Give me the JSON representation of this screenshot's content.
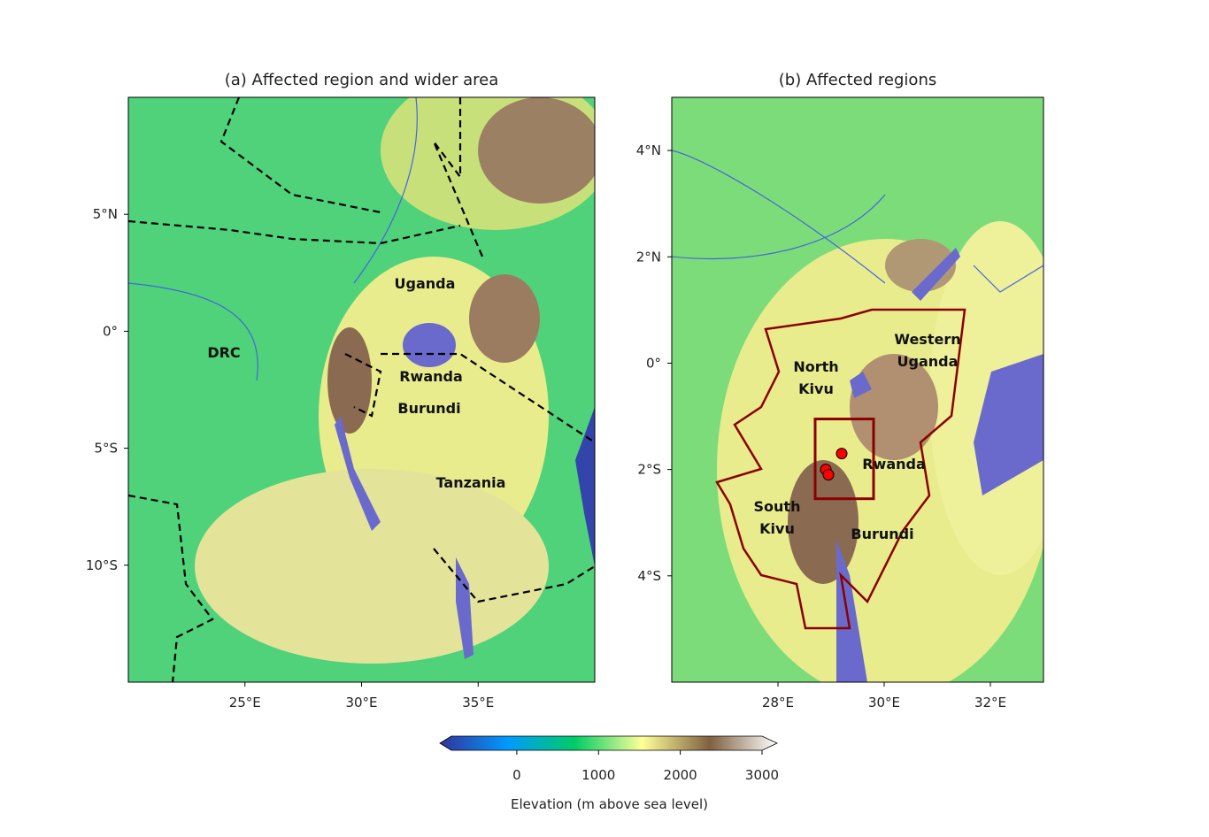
{
  "maps": [
    {
      "title": "(a) Affected region and wider area",
      "xlim": [
        20,
        40
      ],
      "ylim": [
        -15,
        10
      ],
      "xticks": [
        {
          "value": 25,
          "label": "25°E"
        },
        {
          "value": 30,
          "label": "30°E"
        },
        {
          "value": 35,
          "label": "35°E"
        }
      ],
      "yticks": [
        {
          "value": 5,
          "label": "5°N"
        },
        {
          "value": 0,
          "label": "0°"
        },
        {
          "value": -5,
          "label": "5°S"
        },
        {
          "value": -10,
          "label": "10°S"
        }
      ],
      "labels": [
        [
          "Uganda"
        ],
        [
          "DRC"
        ],
        [
          "Rwanda"
        ],
        [
          "Burundi"
        ],
        [
          "Tanzania"
        ]
      ]
    },
    {
      "title": "(b) Affected regions",
      "xlim": [
        26,
        33
      ],
      "ylim": [
        -6,
        5
      ],
      "xticks": [
        {
          "value": 28,
          "label": "28°E"
        },
        {
          "value": 30,
          "label": "30°E"
        },
        {
          "value": 32,
          "label": "32°E"
        }
      ],
      "yticks": [
        {
          "value": 4,
          "label": "4°N"
        },
        {
          "value": 2,
          "label": "2°N"
        },
        {
          "value": 0,
          "label": "0°"
        },
        {
          "value": -2,
          "label": "2°S"
        },
        {
          "value": -4,
          "label": "4°S"
        }
      ],
      "labels": [
        [
          "North",
          "Kivu"
        ],
        [
          "Western",
          "Uganda"
        ],
        [
          "Rwanda"
        ],
        [
          "South",
          "Kivu"
        ],
        [
          "Burundi"
        ]
      ],
      "box": {
        "lon": [
          28.7,
          29.8
        ],
        "lat": [
          -2.55,
          -1.05
        ],
        "color": "#8b0000"
      },
      "points": {
        "lon": [
          29.2,
          28.9,
          28.95
        ],
        "lat": [
          -1.7,
          -2.0,
          -2.1
        ],
        "color": "#ff0000"
      }
    }
  ],
  "colorbar": {
    "label": "Elevation (m above sea level)",
    "lim": [
      -800,
      3000
    ],
    "ticks": [
      0,
      1000,
      2000,
      3000
    ],
    "colors": [
      "#333399",
      "#0099ff",
      "#00cc66",
      "#ffff99",
      "#806040",
      "#ffffff"
    ]
  }
}
